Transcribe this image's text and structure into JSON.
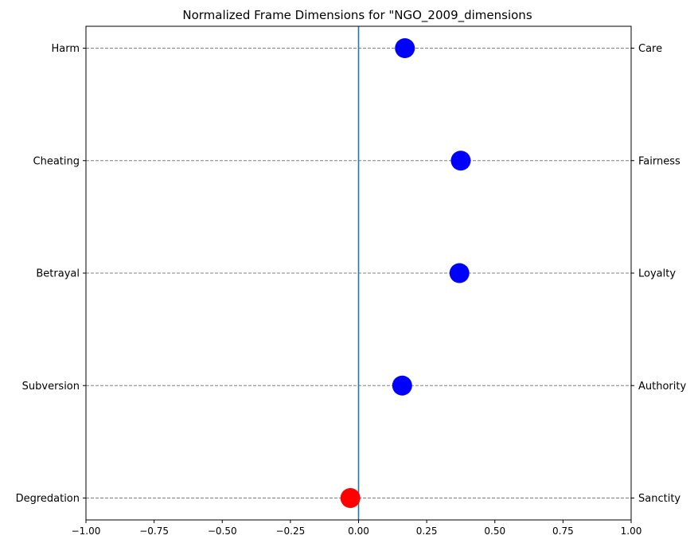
{
  "chart_data": {
    "type": "scatter",
    "title": "Normalized Frame Dimensions for \"NGO_2009_dimensions",
    "xlim": [
      -1.0,
      1.0
    ],
    "x_ticks": [
      "−1.00",
      "−0.75",
      "−0.50",
      "−0.25",
      "0.00",
      "0.25",
      "0.50",
      "0.75",
      "1.00"
    ],
    "x_tick_values": [
      -1.0,
      -0.75,
      -0.5,
      -0.25,
      0.0,
      0.25,
      0.5,
      0.75,
      1.0
    ],
    "rows": [
      {
        "left_label": "Harm",
        "right_label": "Care",
        "value": 0.17
      },
      {
        "left_label": "Cheating",
        "right_label": "Fairness",
        "value": 0.375
      },
      {
        "left_label": "Betrayal",
        "right_label": "Loyalty",
        "value": 0.37
      },
      {
        "left_label": "Subversion",
        "right_label": "Authority",
        "value": 0.16
      },
      {
        "left_label": "Degredation",
        "right_label": "Sanctity",
        "value": -0.03
      }
    ],
    "colors": {
      "positive": "#0000ff",
      "negative": "#ff0000",
      "zero_line": "#1f77b4",
      "grid": "#808080"
    },
    "grid": "horizontal-dashed"
  }
}
